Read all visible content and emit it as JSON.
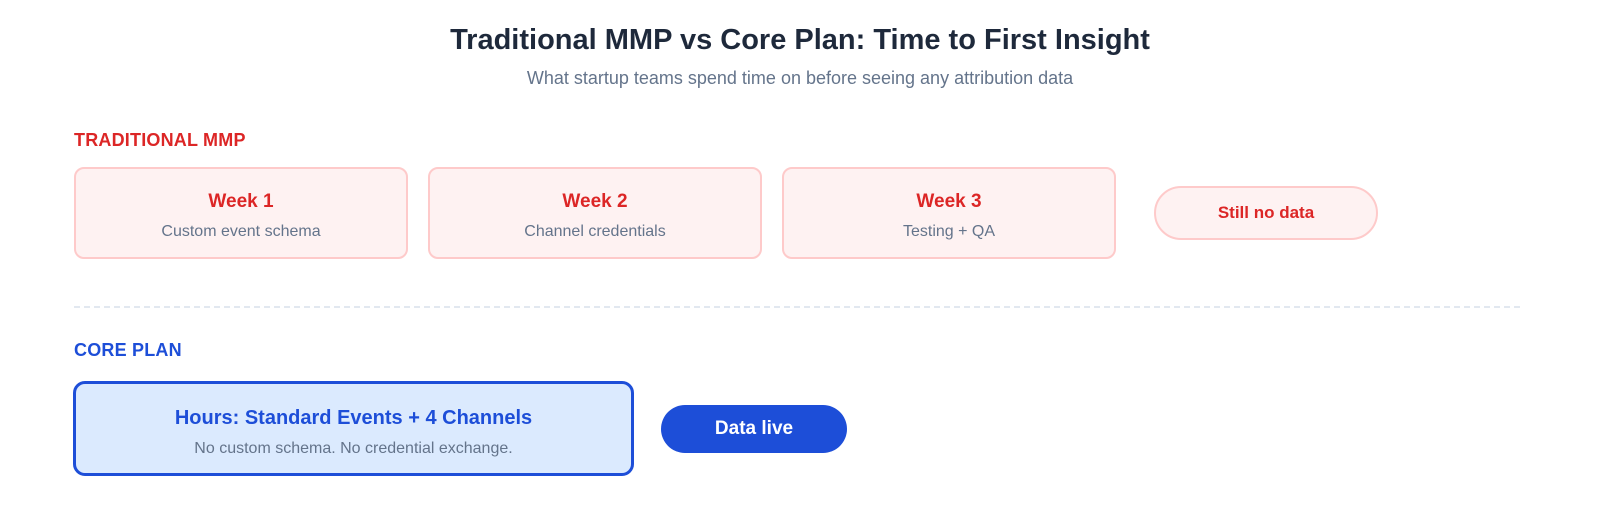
{
  "header": {
    "title": "Traditional MMP vs Core Plan: Time to First Insight",
    "subtitle": "What startup teams spend time on before seeing any attribution data"
  },
  "traditional": {
    "label": "TRADITIONAL MMP",
    "steps": [
      {
        "title": "Week 1",
        "desc": "Custom event schema"
      },
      {
        "title": "Week 2",
        "desc": "Channel credentials"
      },
      {
        "title": "Week 3",
        "desc": "Testing + QA"
      }
    ],
    "outcome": "Still no data"
  },
  "core": {
    "label": "CORE PLAN",
    "title": "Hours: Standard Events + 4 Channels",
    "desc": "No custom schema. No credential exchange.",
    "outcome": "Data live"
  },
  "colors": {
    "traditional_accent": "#dc2626",
    "traditional_fill": "#fef2f2",
    "core_accent": "#1d4ed8",
    "core_fill": "#dbeafe",
    "title": "#1e293b",
    "muted": "#64748b"
  }
}
